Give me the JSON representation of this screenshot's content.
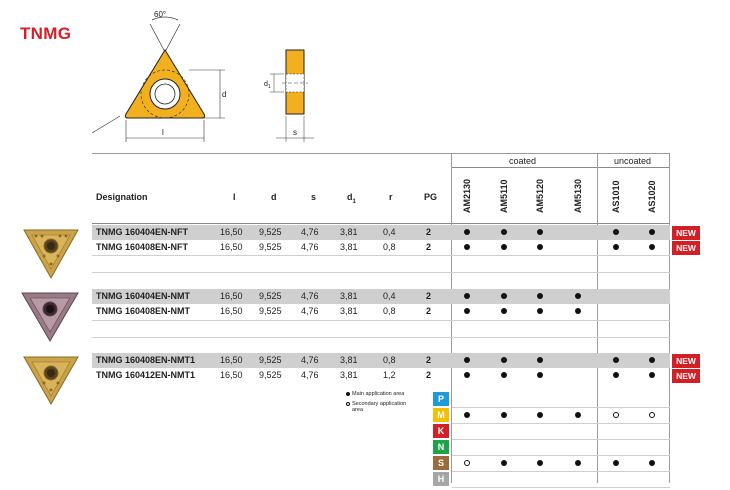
{
  "title": "TNMG",
  "drawing": {
    "angle_label": "60°",
    "d_label": "d",
    "l_label": "l",
    "d1_label": "d",
    "d1_sub": "1",
    "s_label": "s"
  },
  "table": {
    "group_coated": "coated",
    "group_uncoated": "uncoated",
    "headers": {
      "designation": "Designation",
      "l": "l",
      "d": "d",
      "s": "s",
      "d1": "d",
      "d1_sub": "1",
      "r": "r",
      "pg": "PG"
    },
    "grades": [
      "AM2130",
      "AM5110",
      "AM5120",
      "AM5130",
      "AS1010",
      "AS1020"
    ],
    "rows": [
      {
        "designation": "TNMG 160404EN-NFT",
        "l": "16,50",
        "d": "9,525",
        "s": "4,76",
        "d1": "3,81",
        "r": "0,4",
        "pg": "2",
        "marks": [
          "full",
          "full",
          "full",
          "",
          "full",
          "full"
        ],
        "badge": "NEW"
      },
      {
        "designation": "TNMG 160408EN-NFT",
        "l": "16,50",
        "d": "9,525",
        "s": "4,76",
        "d1": "3,81",
        "r": "0,8",
        "pg": "2",
        "marks": [
          "full",
          "full",
          "full",
          "",
          "full",
          "full"
        ],
        "badge": "NEW"
      },
      {
        "designation": "TNMG 160404EN-NMT",
        "l": "16,50",
        "d": "9,525",
        "s": "4,76",
        "d1": "3,81",
        "r": "0,4",
        "pg": "2",
        "marks": [
          "full",
          "full",
          "full",
          "full",
          "",
          ""
        ],
        "badge": ""
      },
      {
        "designation": "TNMG 160408EN-NMT",
        "l": "16,50",
        "d": "9,525",
        "s": "4,76",
        "d1": "3,81",
        "r": "0,8",
        "pg": "2",
        "marks": [
          "full",
          "full",
          "full",
          "full",
          "",
          ""
        ],
        "badge": ""
      },
      {
        "designation": "TNMG 160408EN-NMT1",
        "l": "16,50",
        "d": "9,525",
        "s": "4,76",
        "d1": "3,81",
        "r": "0,8",
        "pg": "2",
        "marks": [
          "full",
          "full",
          "full",
          "",
          "full",
          "full"
        ],
        "badge": "NEW"
      },
      {
        "designation": "TNMG 160412EN-NMT1",
        "l": "16,50",
        "d": "9,525",
        "s": "4,76",
        "d1": "3,81",
        "r": "1,2",
        "pg": "2",
        "marks": [
          "full",
          "full",
          "full",
          "",
          "full",
          "full"
        ],
        "badge": "NEW"
      }
    ]
  },
  "legend": {
    "main": "Main application area",
    "secondary_line1": "Secondary application",
    "secondary_line2": "area"
  },
  "iso_groups": [
    {
      "letter": "P",
      "color": "#1e9ad6",
      "marks": [
        "",
        "",
        "",
        "",
        "",
        ""
      ]
    },
    {
      "letter": "M",
      "color": "#f2c200",
      "marks": [
        "full",
        "full",
        "full",
        "full",
        "open",
        "open"
      ]
    },
    {
      "letter": "K",
      "color": "#d32027",
      "marks": [
        "",
        "",
        "",
        "",
        "",
        ""
      ]
    },
    {
      "letter": "N",
      "color": "#1fa34a",
      "marks": [
        "",
        "",
        "",
        "",
        "",
        ""
      ]
    },
    {
      "letter": "S",
      "color": "#9b6b3c",
      "marks": [
        "open",
        "full",
        "full",
        "full",
        "full",
        "full"
      ]
    },
    {
      "letter": "H",
      "color": "#a6a6a6",
      "marks": [
        "",
        "",
        "",
        "",
        "",
        ""
      ]
    }
  ],
  "colors": {
    "accent": "#d32027",
    "insert_gold": "#f2b01e"
  }
}
